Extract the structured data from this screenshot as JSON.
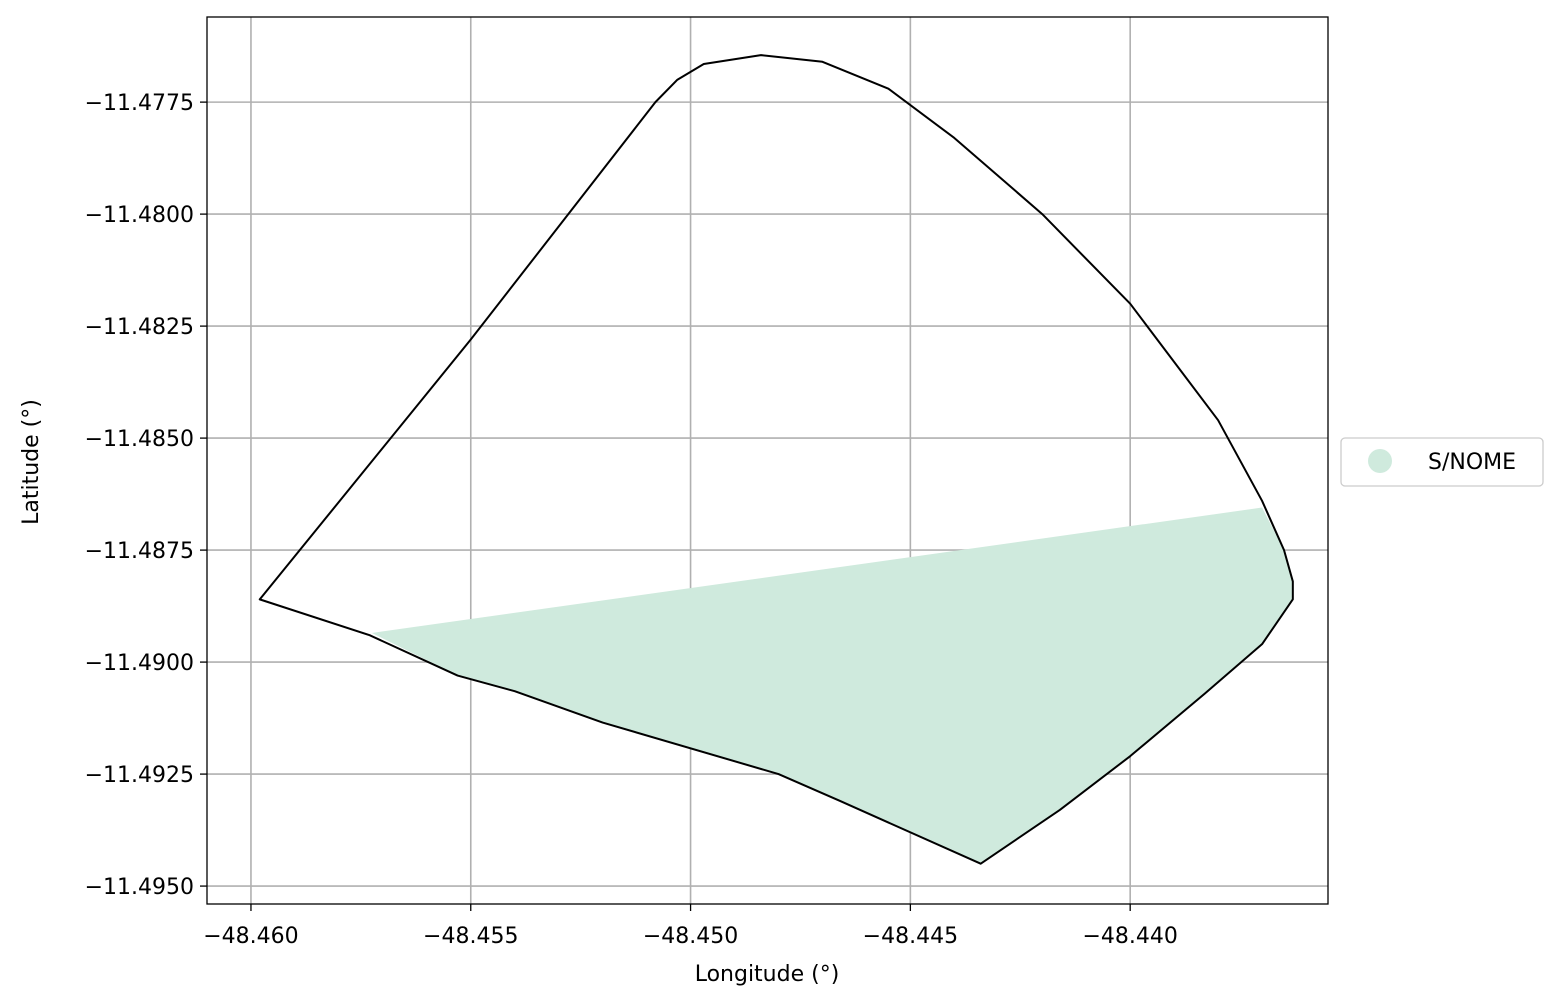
{
  "chart_data": {
    "type": "map",
    "xlabel": "Longitude (°)",
    "ylabel": "Latitude (°)",
    "xlim": [
      -48.461,
      -48.4355
    ],
    "ylim": [
      -11.4954,
      -11.4756
    ],
    "grid": true,
    "x_ticks": [
      -48.46,
      -48.455,
      -48.45,
      -48.445,
      -48.44
    ],
    "x_tick_labels": [
      "−48.460",
      "−48.455",
      "−48.450",
      "−48.445",
      "−48.440"
    ],
    "y_ticks": [
      -11.4775,
      -11.48,
      -11.4825,
      -11.485,
      -11.4875,
      -11.49,
      -11.4925,
      -11.495
    ],
    "y_tick_labels": [
      "−11.4775",
      "−11.4800",
      "−11.4825",
      "−11.4850",
      "−11.4875",
      "−11.4900",
      "−11.4925",
      "−11.4950"
    ],
    "legend": {
      "placement": "center-right-outside",
      "entries": [
        {
          "label": "S/NOME",
          "color": "#cfeadd"
        }
      ]
    },
    "outline_polygon": [
      [
        -48.4598,
        -11.4886
      ],
      [
        -48.455,
        -11.4828
      ],
      [
        -48.4508,
        -11.4775
      ],
      [
        -48.4503,
        -11.477
      ],
      [
        -48.4497,
        -11.47665
      ],
      [
        -48.4484,
        -11.47645
      ],
      [
        -48.447,
        -11.4766
      ],
      [
        -48.4455,
        -11.4772
      ],
      [
        -48.444,
        -11.4783
      ],
      [
        -48.442,
        -11.48
      ],
      [
        -48.44,
        -11.482
      ],
      [
        -48.438,
        -11.4846
      ],
      [
        -48.437,
        -11.4864
      ],
      [
        -48.4365,
        -11.4875
      ],
      [
        -48.4363,
        -11.4882
      ],
      [
        -48.4363,
        -11.4886
      ],
      [
        -48.437,
        -11.4896
      ],
      [
        -48.4383,
        -11.4907
      ],
      [
        -48.44,
        -11.4921
      ],
      [
        -48.4416,
        -11.4933
      ],
      [
        -48.4434,
        -11.4945
      ],
      [
        -48.4466,
        -11.4931
      ],
      [
        -48.448,
        -11.4925
      ],
      [
        -48.452,
        -11.49135
      ],
      [
        -48.454,
        -11.49065
      ],
      [
        -48.4553,
        -11.4903
      ],
      [
        -48.4573,
        -11.4894
      ],
      [
        -48.4598,
        -11.4886
      ]
    ],
    "filled_polygon": [
      [
        -48.45725,
        -11.48935
      ],
      [
        -48.437,
        -11.48655
      ],
      [
        -48.4365,
        -11.4875
      ],
      [
        -48.4363,
        -11.4882
      ],
      [
        -48.4363,
        -11.4886
      ],
      [
        -48.437,
        -11.4896
      ],
      [
        -48.4383,
        -11.4907
      ],
      [
        -48.44,
        -11.4921
      ],
      [
        -48.4416,
        -11.4933
      ],
      [
        -48.4434,
        -11.4945
      ],
      [
        -48.4466,
        -11.4931
      ],
      [
        -48.448,
        -11.4925
      ],
      [
        -48.452,
        -11.49135
      ],
      [
        -48.454,
        -11.49065
      ],
      [
        -48.4553,
        -11.4903
      ],
      [
        -48.45725,
        -11.48935
      ]
    ],
    "fill_color": "#cfeadd",
    "outline_color": "#000000"
  }
}
